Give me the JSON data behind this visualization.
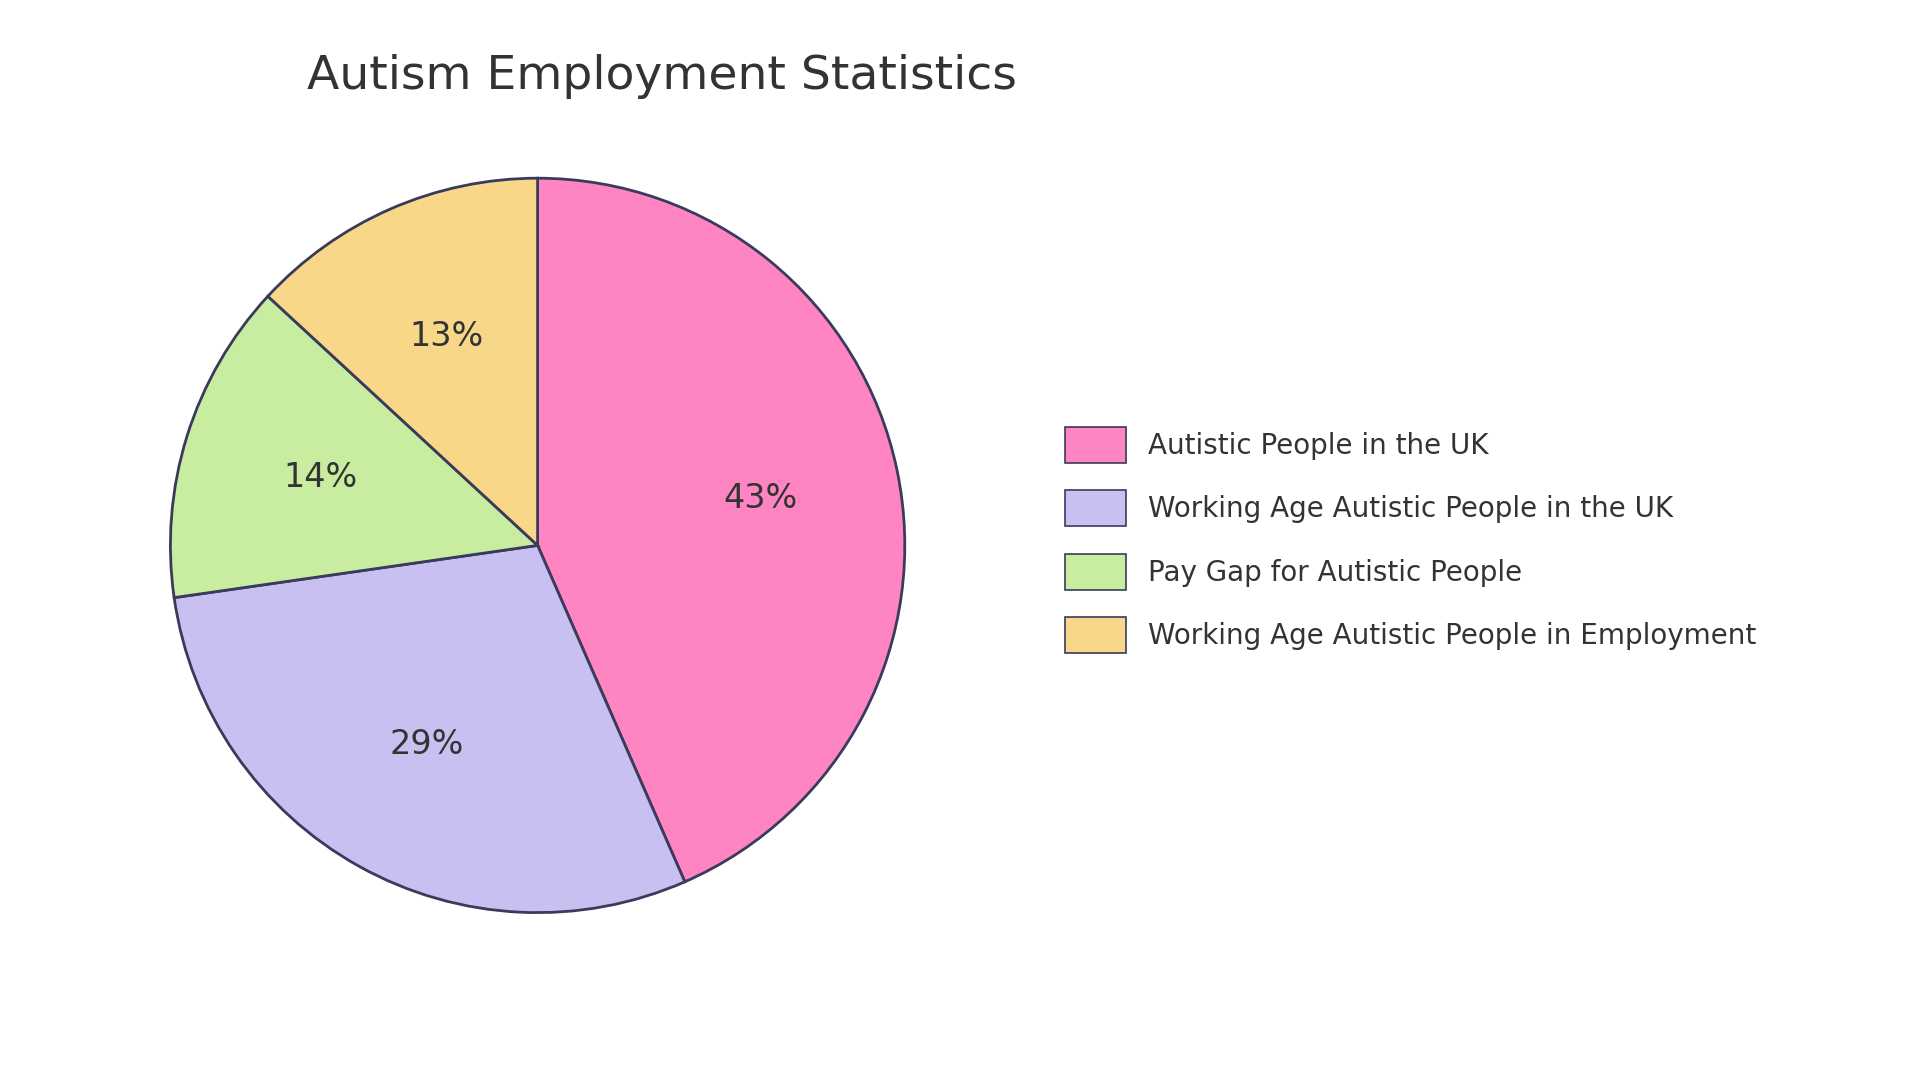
{
  "title": "Autism Employment Statistics",
  "labels": [
    "Autistic People in the UK",
    "Working Age Autistic People in the UK",
    "Pay Gap for Autistic People",
    "Working Age Autistic People in Employment"
  ],
  "values": [
    43,
    29,
    14,
    13
  ],
  "colors": [
    "#FF85C2",
    "#C8C0F0",
    "#C8ECA0",
    "#F8D888"
  ],
  "pct_labels": [
    "43%",
    "29%",
    "14%",
    "13%"
  ],
  "wedge_edge_color": "#3A3A5C",
  "wedge_edge_width": 2.0,
  "background_color": "#FFFFFF",
  "title_fontsize": 34,
  "pct_fontsize": 24,
  "legend_fontsize": 20,
  "start_angle": 90
}
